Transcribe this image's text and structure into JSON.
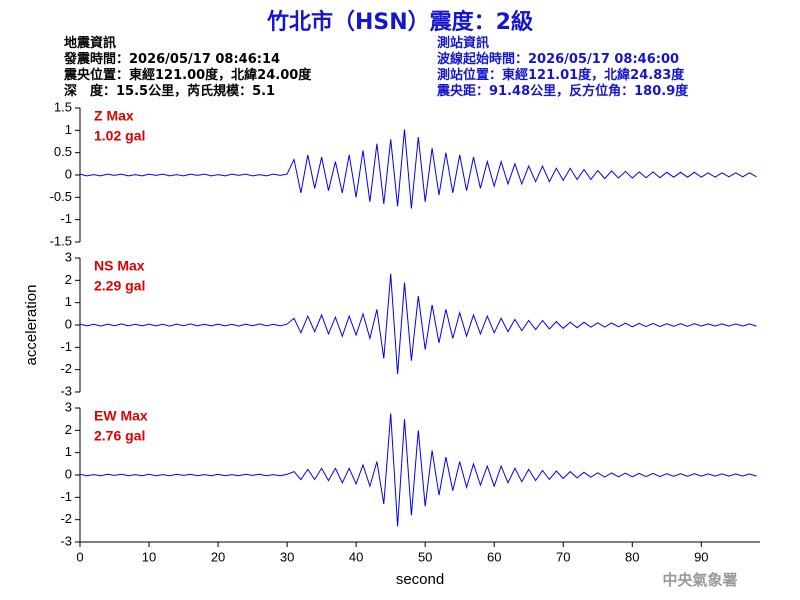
{
  "header": {
    "title": "竹北市（HSN）震度：2級",
    "quake_info": [
      "地震資訊",
      "發震時間：2026/05/17 08:46:14",
      "震央位置：東經121.00度，北緯24.00度",
      "深　度：15.5公里，芮氏規模：5.1"
    ],
    "station_info": [
      "測站資訊",
      "波線起始時間：2026/05/17 08:46:00",
      "測站位置：東經121.01度，北緯24.83度",
      "震央距：91.48公里，反方位角：180.9度"
    ]
  },
  "footer": "中央氣象署",
  "chart_data": [
    {
      "type": "line",
      "annotation": [
        "Z Max",
        "1.02 gal"
      ],
      "xlim": [
        0,
        98.5
      ],
      "ylim": [
        -1.5,
        1.5
      ],
      "yticks": [
        -1.5,
        -1,
        -0.5,
        0,
        0.5,
        1,
        1.5
      ],
      "x": [
        0,
        1,
        2,
        3,
        4,
        5,
        6,
        7,
        8,
        9,
        10,
        11,
        12,
        13,
        14,
        15,
        16,
        17,
        18,
        19,
        20,
        21,
        22,
        23,
        24,
        25,
        26,
        27,
        28,
        29,
        30,
        31,
        32,
        33,
        34,
        35,
        36,
        37,
        38,
        39,
        40,
        41,
        42,
        43,
        44,
        45,
        46,
        47,
        48,
        49,
        50,
        51,
        52,
        53,
        54,
        55,
        56,
        57,
        58,
        59,
        60,
        61,
        62,
        63,
        64,
        65,
        66,
        67,
        68,
        69,
        70,
        71,
        72,
        73,
        74,
        75,
        76,
        77,
        78,
        79,
        80,
        81,
        82,
        83,
        84,
        85,
        86,
        87,
        88,
        89,
        90,
        91,
        92,
        93,
        94,
        95,
        96,
        97,
        98
      ],
      "series": [
        {
          "color": "#0000ff",
          "values": [
            0.02,
            -0.02,
            0.01,
            -0.02,
            0.02,
            -0.01,
            0.02,
            -0.02,
            0.01,
            -0.02,
            0.02,
            -0.01,
            0.02,
            -0.02,
            0.01,
            -0.02,
            0.02,
            -0.01,
            0.02,
            -0.02,
            0.01,
            -0.02,
            0.02,
            -0.01,
            0.02,
            -0.02,
            0.01,
            -0.02,
            0.02,
            -0.01,
            0.02,
            0.35,
            -0.4,
            0.45,
            -0.3,
            0.4,
            -0.35,
            0.3,
            -0.4,
            0.45,
            -0.5,
            0.55,
            -0.6,
            0.7,
            -0.65,
            0.8,
            -0.7,
            1.02,
            -0.75,
            0.85,
            -0.6,
            0.6,
            -0.45,
            0.5,
            -0.4,
            0.45,
            -0.35,
            0.4,
            -0.3,
            0.3,
            -0.25,
            0.3,
            -0.2,
            0.25,
            -0.2,
            0.2,
            -0.15,
            0.2,
            -0.15,
            0.15,
            -0.12,
            0.15,
            -0.1,
            0.12,
            -0.1,
            0.1,
            -0.08,
            0.09,
            -0.07,
            0.08,
            -0.07,
            0.07,
            -0.06,
            0.07,
            -0.06,
            0.06,
            -0.05,
            0.06,
            -0.05,
            0.06,
            -0.05,
            0.05,
            -0.05,
            0.05,
            -0.04,
            0.05,
            -0.04,
            0.05,
            -0.04
          ]
        }
      ]
    },
    {
      "type": "line",
      "annotation": [
        "NS Max",
        "2.29 gal"
      ],
      "ylabel": "acceleration",
      "xlim": [
        0,
        98.5
      ],
      "ylim": [
        -3,
        3
      ],
      "yticks": [
        -3,
        -2,
        -1,
        0,
        1,
        2,
        3
      ],
      "x": [
        0,
        1,
        2,
        3,
        4,
        5,
        6,
        7,
        8,
        9,
        10,
        11,
        12,
        13,
        14,
        15,
        16,
        17,
        18,
        19,
        20,
        21,
        22,
        23,
        24,
        25,
        26,
        27,
        28,
        29,
        30,
        31,
        32,
        33,
        34,
        35,
        36,
        37,
        38,
        39,
        40,
        41,
        42,
        43,
        44,
        45,
        46,
        47,
        48,
        49,
        50,
        51,
        52,
        53,
        54,
        55,
        56,
        57,
        58,
        59,
        60,
        61,
        62,
        63,
        64,
        65,
        66,
        67,
        68,
        69,
        70,
        71,
        72,
        73,
        74,
        75,
        76,
        77,
        78,
        79,
        80,
        81,
        82,
        83,
        84,
        85,
        86,
        87,
        88,
        89,
        90,
        91,
        92,
        93,
        94,
        95,
        96,
        97,
        98
      ],
      "series": [
        {
          "color": "#0000ff",
          "values": [
            0.04,
            -0.04,
            0.03,
            -0.05,
            0.04,
            -0.03,
            0.05,
            -0.04,
            0.03,
            -0.04,
            0.04,
            -0.04,
            0.03,
            -0.05,
            0.04,
            -0.03,
            0.05,
            -0.04,
            0.03,
            -0.04,
            0.04,
            -0.04,
            0.03,
            -0.05,
            0.04,
            -0.03,
            0.05,
            -0.04,
            0.03,
            -0.04,
            0.04,
            0.3,
            -0.35,
            0.4,
            -0.3,
            0.45,
            -0.4,
            0.35,
            -0.5,
            0.4,
            -0.45,
            0.5,
            -0.6,
            0.7,
            -1.5,
            2.29,
            -2.2,
            1.9,
            -1.6,
            1.3,
            -1.1,
            0.9,
            -0.8,
            0.7,
            -0.6,
            0.55,
            -0.5,
            0.45,
            -0.4,
            0.4,
            -0.35,
            0.3,
            -0.3,
            0.25,
            -0.25,
            0.2,
            -0.2,
            0.2,
            -0.18,
            0.15,
            -0.15,
            0.13,
            -0.12,
            0.12,
            -0.1,
            0.1,
            -0.09,
            0.09,
            -0.08,
            0.08,
            -0.08,
            0.07,
            -0.07,
            0.07,
            -0.07,
            0.06,
            -0.06,
            0.06,
            -0.06,
            0.06,
            -0.05,
            0.05,
            -0.05,
            0.05,
            -0.05,
            0.05,
            -0.05,
            0.05,
            -0.05
          ]
        }
      ]
    },
    {
      "type": "line",
      "annotation": [
        "EW Max",
        "2.76 gal"
      ],
      "xlabel": "second",
      "xlim": [
        0,
        98.5
      ],
      "xticks": [
        0,
        10,
        20,
        30,
        40,
        50,
        60,
        70,
        80,
        90
      ],
      "ylim": [
        -3,
        3
      ],
      "yticks": [
        -3,
        -2,
        -1,
        0,
        1,
        2,
        3
      ],
      "x": [
        0,
        1,
        2,
        3,
        4,
        5,
        6,
        7,
        8,
        9,
        10,
        11,
        12,
        13,
        14,
        15,
        16,
        17,
        18,
        19,
        20,
        21,
        22,
        23,
        24,
        25,
        26,
        27,
        28,
        29,
        30,
        31,
        32,
        33,
        34,
        35,
        36,
        37,
        38,
        39,
        40,
        41,
        42,
        43,
        44,
        45,
        46,
        47,
        48,
        49,
        50,
        51,
        52,
        53,
        54,
        55,
        56,
        57,
        58,
        59,
        60,
        61,
        62,
        63,
        64,
        65,
        66,
        67,
        68,
        69,
        70,
        71,
        72,
        73,
        74,
        75,
        76,
        77,
        78,
        79,
        80,
        81,
        82,
        83,
        84,
        85,
        86,
        87,
        88,
        89,
        90,
        91,
        92,
        93,
        94,
        95,
        96,
        97,
        98
      ],
      "series": [
        {
          "color": "#0000ff",
          "values": [
            0.03,
            -0.03,
            0.02,
            -0.03,
            0.03,
            -0.02,
            0.03,
            -0.03,
            0.02,
            -0.03,
            0.03,
            -0.03,
            0.02,
            -0.03,
            0.03,
            -0.02,
            0.03,
            -0.03,
            0.02,
            -0.03,
            0.03,
            -0.03,
            0.02,
            -0.03,
            0.03,
            -0.02,
            0.03,
            -0.03,
            0.02,
            -0.03,
            0.03,
            0.15,
            -0.2,
            0.25,
            -0.2,
            0.3,
            -0.25,
            0.3,
            -0.35,
            0.3,
            -0.4,
            0.45,
            -0.5,
            0.6,
            -1.3,
            2.76,
            -2.3,
            2.5,
            -1.8,
            2.0,
            -1.4,
            1.1,
            -0.9,
            0.8,
            -0.7,
            0.6,
            -0.55,
            0.5,
            -0.45,
            0.4,
            -0.5,
            0.4,
            -0.35,
            0.3,
            -0.3,
            0.25,
            -0.25,
            0.2,
            -0.2,
            0.18,
            -0.15,
            0.15,
            -0.13,
            0.12,
            -0.1,
            0.1,
            -0.09,
            0.09,
            -0.08,
            0.08,
            -0.08,
            0.07,
            -0.07,
            0.07,
            -0.07,
            0.06,
            -0.06,
            0.06,
            -0.06,
            0.06,
            -0.05,
            0.05,
            -0.05,
            0.05,
            -0.05,
            0.05,
            -0.05,
            0.05,
            -0.05
          ]
        }
      ]
    }
  ]
}
